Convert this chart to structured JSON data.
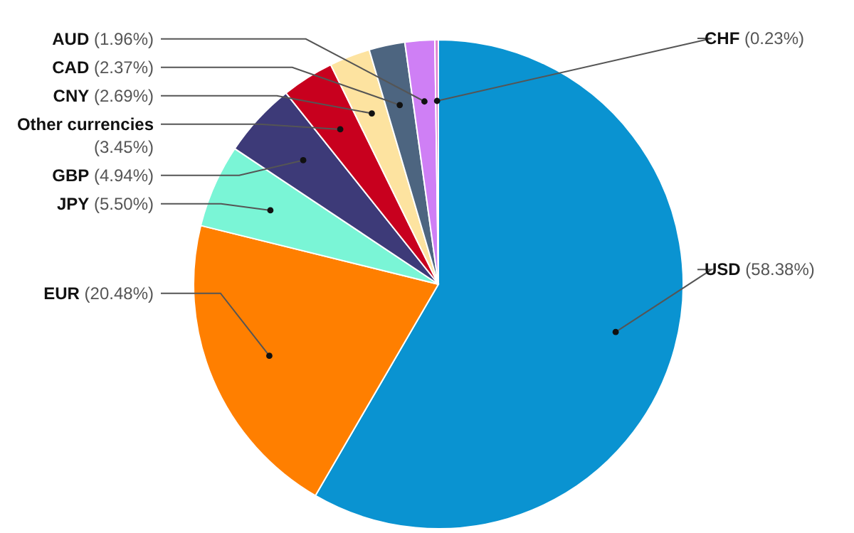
{
  "chart_data": {
    "type": "pie",
    "categories": [
      "USD",
      "EUR",
      "JPY",
      "GBP",
      "Other currencies",
      "CNY",
      "CAD",
      "AUD",
      "CHF"
    ],
    "values": [
      58.38,
      20.48,
      5.5,
      4.94,
      3.45,
      2.69,
      2.37,
      1.96,
      0.23
    ],
    "value_labels": [
      "(58.38%)",
      "(20.48%)",
      "(5.50%)",
      "(4.94%)",
      "(3.45%)",
      "(2.69%)",
      "(2.37%)",
      "(1.96%)",
      "(0.23%)"
    ],
    "colors": [
      "#0a93d1",
      "#ff7f00",
      "#7af5d6",
      "#3d3a78",
      "#c8001e",
      "#fde3a0",
      "#4d6580",
      "#cf7ff5",
      "#e07fd0"
    ],
    "legend": false
  }
}
